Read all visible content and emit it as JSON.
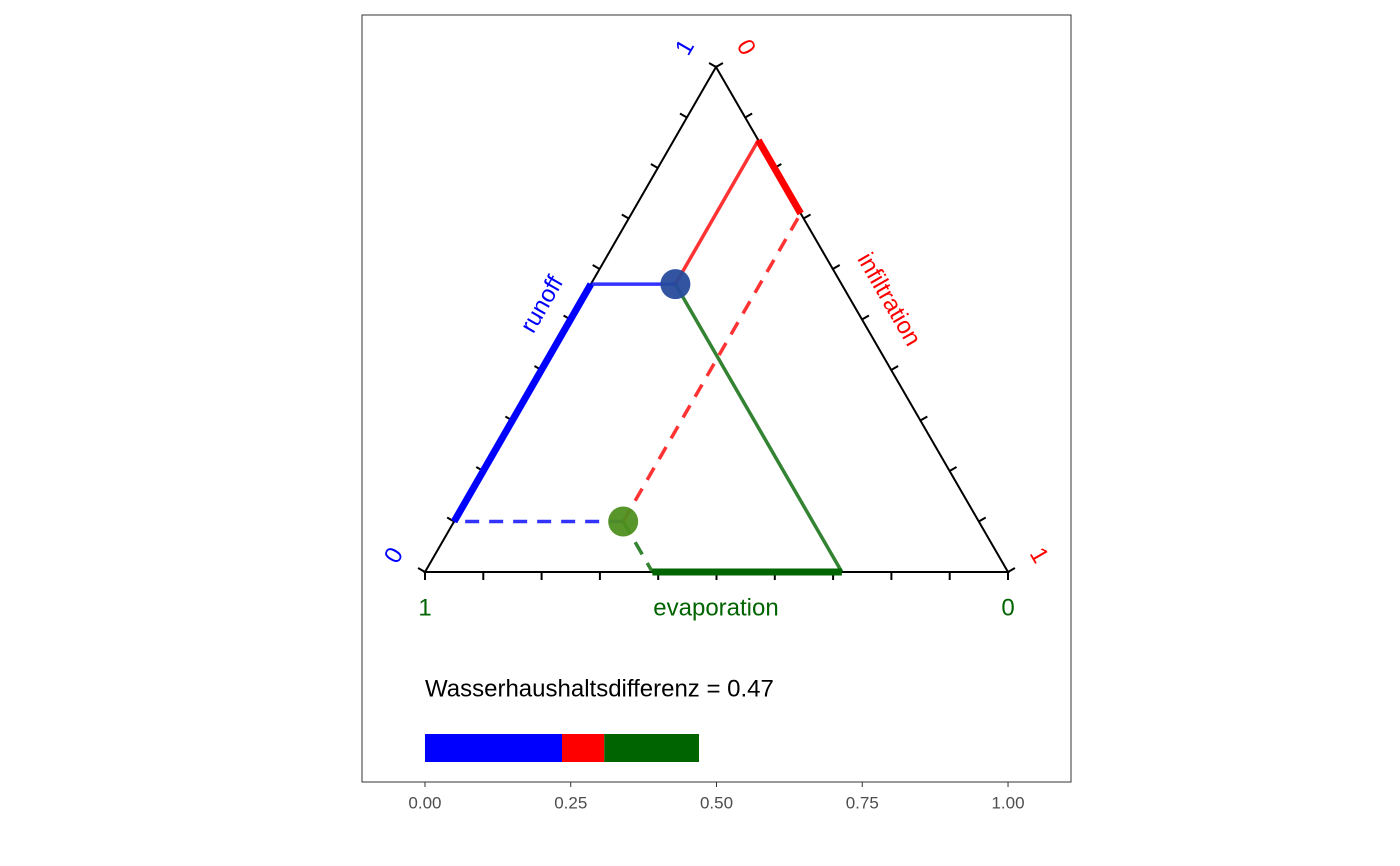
{
  "chart_data": {
    "type": "ternary",
    "axes": [
      {
        "name": "runoff",
        "color": "#0000ff",
        "end_labels": [
          0,
          1
        ]
      },
      {
        "name": "infiltration",
        "color": "#ff0000",
        "end_labels": [
          0,
          1
        ]
      },
      {
        "name": "evaporation",
        "color": "#006400",
        "end_labels": [
          1,
          0
        ]
      }
    ],
    "ternary_ticks": [
      0,
      0.1,
      0.2,
      0.3,
      0.4,
      0.5,
      0.6,
      0.7,
      0.8,
      0.9,
      1
    ],
    "points": [
      {
        "runoff": 0.57,
        "infiltration": 0.145,
        "evaporation": 0.285,
        "color": "#274b9c",
        "line": "solid"
      },
      {
        "runoff": 0.1,
        "infiltration": 0.29,
        "evaporation": 0.61,
        "color": "#4f8f1f",
        "line": "dashed"
      }
    ],
    "annotation": "Wasserhaushaltsdifferenz = 0.47",
    "xlim": [
      -0.108,
      1.108
    ],
    "xticks": [
      {
        "value": 0,
        "label": "0.00"
      },
      {
        "value": 0.25,
        "label": "0.25"
      },
      {
        "value": 0.5,
        "label": "0.50"
      },
      {
        "value": 0.75,
        "label": "0.75"
      },
      {
        "value": 1,
        "label": "1.00"
      }
    ]
  }
}
